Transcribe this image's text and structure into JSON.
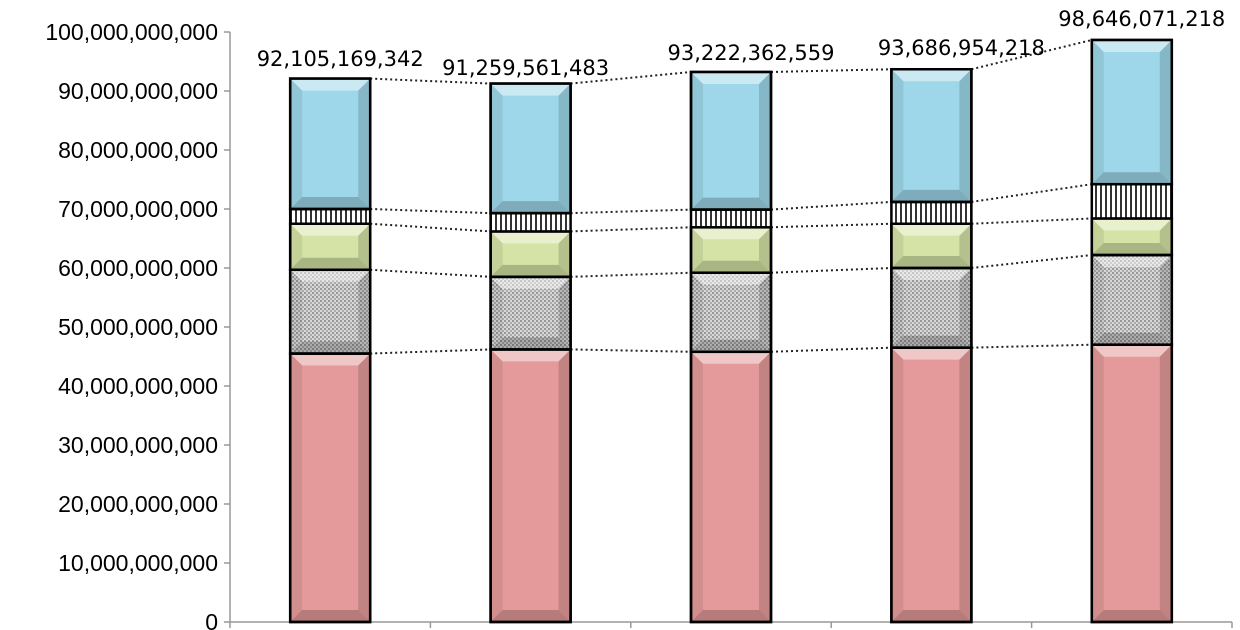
{
  "chart_data": {
    "type": "bar",
    "stacked": true,
    "categories": [
      "",
      "",
      "",
      "",
      ""
    ],
    "totals": [
      "92,105,169,342",
      "91,259,561,483",
      "93,222,362,559",
      "93,686,954,218",
      "98,646,071,218"
    ],
    "series": [
      {
        "values": [
          45500000000,
          46200000000,
          45800000000,
          46500000000,
          47000000000
        ],
        "color": "#e49a9a",
        "pattern": "solid"
      },
      {
        "values": [
          14200000000,
          12300000000,
          13400000000,
          13500000000,
          15200000000
        ],
        "color": "#d0d0d0",
        "pattern": "dots"
      },
      {
        "values": [
          7800000000,
          7700000000,
          7700000000,
          7500000000,
          6200000000
        ],
        "color": "#d5e3a6",
        "pattern": "solid"
      },
      {
        "values": [
          2500000000,
          3100000000,
          3000000000,
          3700000000,
          5800000000
        ],
        "color": "#ffffff",
        "pattern": "vstripes"
      },
      {
        "values": [
          22105169342,
          21959561483,
          23322362559,
          22486954218,
          24446071218
        ],
        "color": "#9ed7ea",
        "pattern": "solid"
      }
    ],
    "ylim": [
      0,
      100000000000
    ],
    "yticks": [
      {
        "value": 0,
        "label": "0"
      },
      {
        "value": 10000000000,
        "label": "10,000,000,000"
      },
      {
        "value": 20000000000,
        "label": "20,000,000,000"
      },
      {
        "value": 30000000000,
        "label": "30,000,000,000"
      },
      {
        "value": 40000000000,
        "label": "40,000,000,000"
      },
      {
        "value": 50000000000,
        "label": "50,000,000,000"
      },
      {
        "value": 60000000000,
        "label": "60,000,000,000"
      },
      {
        "value": 70000000000,
        "label": "70,000,000,000"
      },
      {
        "value": 80000000000,
        "label": "80,000,000,000"
      },
      {
        "value": 90000000000,
        "label": "90,000,000,000"
      },
      {
        "value": 100000000000,
        "label": "100,000,000,000"
      }
    ],
    "grid": false,
    "connector_lines": true,
    "legend": "none"
  }
}
